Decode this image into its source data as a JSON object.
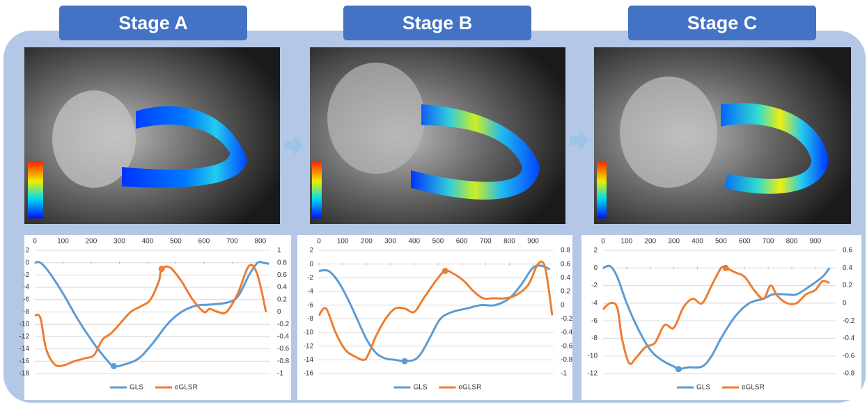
{
  "chart_data": [
    {
      "type": "line",
      "title": "Stage A",
      "xlim": [
        0,
        830
      ],
      "xticks": [
        0,
        100,
        200,
        300,
        400,
        500,
        600,
        700,
        800
      ],
      "ylim": [
        -18,
        2
      ],
      "yticks": [
        2,
        0,
        -2,
        -4,
        -6,
        -8,
        -10,
        -12,
        -14,
        -16,
        -18
      ],
      "y2lim": [
        -1,
        1
      ],
      "y2ticks": [
        1,
        0.8,
        0.6,
        0.4,
        0.2,
        0,
        -0.2,
        -0.4,
        -0.6,
        -0.8,
        -1
      ],
      "grid": true,
      "legend": "bottom",
      "series": [
        {
          "name": "GLS",
          "color": "#5b9bd5",
          "x": [
            0,
            20,
            50,
            100,
            150,
            200,
            250,
            280,
            320,
            370,
            420,
            470,
            520,
            570,
            620,
            680,
            720,
            760,
            790,
            810,
            830
          ],
          "values": [
            0,
            0,
            -1.5,
            -5,
            -9,
            -12.5,
            -15.5,
            -16.8,
            -16.5,
            -15.5,
            -13,
            -10,
            -8,
            -7,
            -6.8,
            -6.5,
            -5.5,
            -2,
            0,
            0,
            -0.2
          ],
          "marker": {
            "x": 280,
            "y": -16.8
          }
        },
        {
          "name": "eGLSR",
          "color": "#ed7d31",
          "axis": "y2",
          "x": [
            0,
            20,
            40,
            70,
            100,
            140,
            180,
            210,
            240,
            270,
            300,
            340,
            380,
            410,
            440,
            450,
            480,
            520,
            560,
            600,
            620,
            650,
            680,
            720,
            760,
            790,
            820
          ],
          "values": [
            -0.05,
            -0.1,
            -0.6,
            -0.85,
            -0.87,
            -0.8,
            -0.75,
            -0.7,
            -0.45,
            -0.35,
            -0.2,
            0,
            0.1,
            0.2,
            0.5,
            0.7,
            0.72,
            0.5,
            0.2,
            0,
            0.05,
            0,
            0,
            0.3,
            0.75,
            0.6,
            0
          ],
          "marker": {
            "x": 450,
            "y": 0.7
          }
        }
      ]
    },
    {
      "type": "line",
      "title": "Stage B",
      "xlim": [
        0,
        980
      ],
      "xticks": [
        0,
        100,
        200,
        300,
        400,
        500,
        600,
        700,
        800,
        900
      ],
      "ylim": [
        -16,
        2
      ],
      "yticks": [
        2,
        0,
        -2,
        -4,
        -6,
        -8,
        -10,
        -12,
        -14,
        -16
      ],
      "y2lim": [
        -1,
        0.8
      ],
      "y2ticks": [
        0.8,
        0.6,
        0.4,
        0.2,
        0,
        -0.2,
        -0.4,
        -0.6,
        -0.8,
        -1
      ],
      "grid": true,
      "legend": "bottom",
      "series": [
        {
          "name": "GLS",
          "color": "#5b9bd5",
          "x": [
            0,
            40,
            80,
            120,
            160,
            200,
            240,
            280,
            320,
            360,
            400,
            430,
            470,
            510,
            560,
            620,
            680,
            740,
            800,
            850,
            900,
            940,
            970
          ],
          "values": [
            -1,
            -1,
            -2.5,
            -5,
            -8,
            -11,
            -13,
            -13.8,
            -14,
            -14.2,
            -14,
            -13,
            -10.5,
            -8,
            -7,
            -6.5,
            -6,
            -6,
            -5,
            -3,
            -0.5,
            -0.3,
            -0.8
          ],
          "marker": {
            "x": 360,
            "y": -14.2
          }
        },
        {
          "name": "eGLSR",
          "color": "#ed7d31",
          "axis": "y2",
          "x": [
            0,
            30,
            70,
            110,
            150,
            190,
            210,
            240,
            280,
            320,
            360,
            400,
            440,
            490,
            530,
            570,
            610,
            650,
            690,
            730,
            780,
            830,
            880,
            920,
            950,
            980
          ],
          "values": [
            -0.15,
            -0.05,
            -0.4,
            -0.65,
            -0.75,
            -0.8,
            -0.7,
            -0.45,
            -0.2,
            -0.05,
            -0.05,
            -0.1,
            0.1,
            0.35,
            0.5,
            0.45,
            0.35,
            0.2,
            0.1,
            0.1,
            0.1,
            0.15,
            0.3,
            0.6,
            0.55,
            -0.15
          ],
          "marker": {
            "x": 530,
            "y": 0.5
          }
        }
      ]
    },
    {
      "type": "line",
      "title": "Stage C",
      "xlim": [
        0,
        980
      ],
      "xticks": [
        0,
        100,
        200,
        300,
        400,
        500,
        600,
        700,
        800,
        900
      ],
      "ylim": [
        -12,
        2
      ],
      "yticks": [
        2,
        0,
        -2,
        -4,
        -6,
        -8,
        -10,
        -12
      ],
      "y2lim": [
        -0.8,
        0.6
      ],
      "y2ticks": [
        0.6,
        0.4,
        0.2,
        0,
        -0.2,
        -0.4,
        -0.6,
        -0.8
      ],
      "grid": true,
      "legend": "bottom",
      "series": [
        {
          "name": "GLS",
          "color": "#5b9bd5",
          "x": [
            0,
            30,
            60,
            100,
            150,
            200,
            250,
            300,
            320,
            360,
            420,
            460,
            500,
            560,
            620,
            680,
            720,
            780,
            820,
            880,
            930,
            960
          ],
          "values": [
            0,
            0.2,
            -1,
            -4,
            -7,
            -9.3,
            -10.5,
            -11.2,
            -11.5,
            -11.3,
            -11.2,
            -10,
            -8,
            -5.5,
            -4,
            -3.5,
            -3,
            -3,
            -3,
            -2,
            -1,
            0
          ],
          "marker": {
            "x": 320,
            "y": -11.5
          }
        },
        {
          "name": "eGLSR",
          "color": "#ed7d31",
          "axis": "y2",
          "x": [
            0,
            30,
            60,
            80,
            110,
            140,
            180,
            220,
            260,
            300,
            340,
            380,
            420,
            460,
            500,
            520,
            560,
            600,
            640,
            680,
            710,
            740,
            780,
            820,
            860,
            900,
            930,
            960
          ],
          "values": [
            -0.07,
            0,
            -0.05,
            -0.4,
            -0.68,
            -0.62,
            -0.5,
            -0.45,
            -0.25,
            -0.28,
            -0.05,
            0.05,
            0,
            0.2,
            0.4,
            0.4,
            0.35,
            0.3,
            0.15,
            0.05,
            0.2,
            0.08,
            0,
            0,
            0.1,
            0.15,
            0.25,
            0.23
          ],
          "marker": {
            "x": 520,
            "y": 0.4
          }
        }
      ]
    }
  ]
}
